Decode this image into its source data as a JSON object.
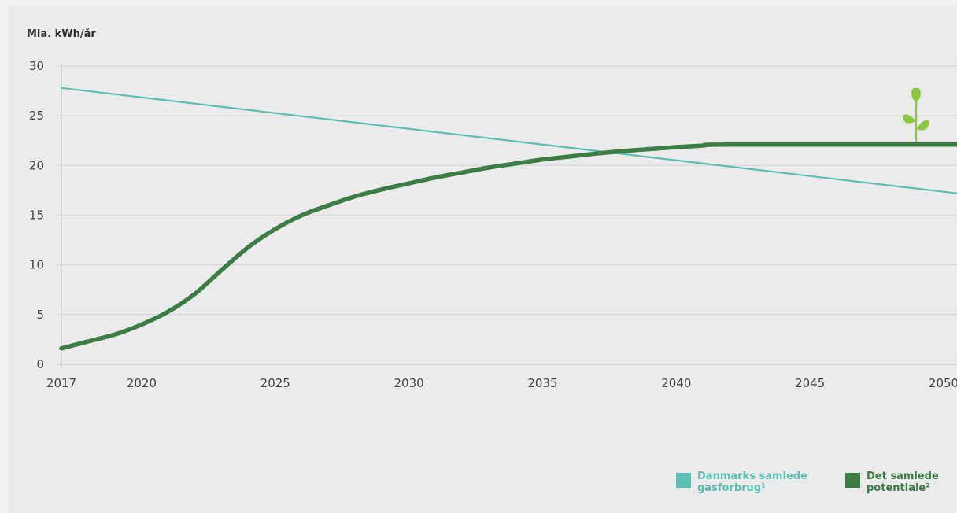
{
  "chart_data": {
    "type": "line",
    "ylabel": "Mia. kWh/år",
    "xlabel": "",
    "title": "",
    "xlim": [
      2017,
      2050.5
    ],
    "ylim": [
      0,
      30
    ],
    "x_ticks": [
      2017,
      2020,
      2025,
      2030,
      2035,
      2040,
      2045,
      2050
    ],
    "y_ticks": [
      0,
      5,
      10,
      15,
      20,
      25,
      30
    ],
    "grid": "horizontal",
    "legend_position": "bottom-right",
    "series": [
      {
        "name": "Danmarks samlede gasforbrug¹",
        "color": "#5bbfb2",
        "x": [
          2017,
          2050.5
        ],
        "y": [
          27.8,
          17.2
        ]
      },
      {
        "name": "Det samlede potentiale²",
        "color": "#3c7c45",
        "x": [
          2017,
          2018,
          2019,
          2020,
          2021,
          2022,
          2023,
          2024,
          2025,
          2026,
          2027,
          2028,
          2029,
          2030,
          2031,
          2032,
          2033,
          2034,
          2035,
          2036,
          2037,
          2038,
          2039,
          2040,
          2041,
          2042,
          2050.5
        ],
        "y": [
          1.6,
          2.3,
          3.0,
          4.0,
          5.3,
          7.1,
          9.5,
          11.8,
          13.6,
          15.0,
          16.0,
          16.9,
          17.6,
          18.2,
          18.8,
          19.3,
          19.8,
          20.2,
          20.6,
          20.9,
          21.2,
          21.45,
          21.65,
          21.85,
          22.0,
          22.1,
          22.1
        ]
      }
    ]
  },
  "legend": [
    {
      "label": "Danmarks samlede\ngasforbrug¹",
      "color": "#5bbfb2"
    },
    {
      "label": "Det samlede\npotentiale²",
      "color": "#3c7c45"
    }
  ],
  "icon": {
    "name": "sprout-icon",
    "color": "#8dc63f"
  }
}
